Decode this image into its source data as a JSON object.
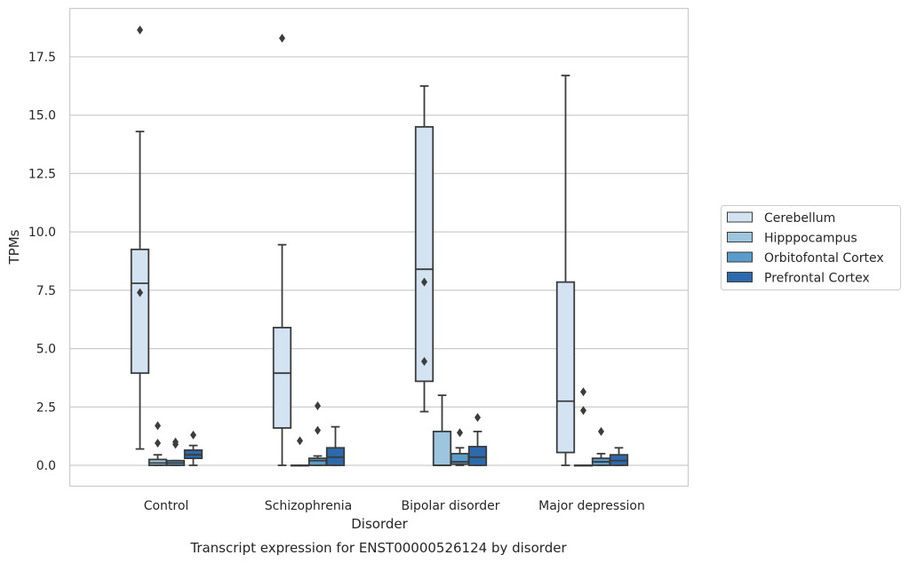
{
  "chart_data": {
    "type": "box",
    "title": "",
    "caption": "Transcript expression for ENST00000526124 by disorder",
    "xlabel": "Disorder",
    "ylabel": "TPMs",
    "ylim": [
      -0.9,
      19.6
    ],
    "yticks": [
      0.0,
      2.5,
      5.0,
      7.5,
      10.0,
      12.5,
      15.0,
      17.5
    ],
    "ytick_labels": [
      "0.0",
      "2.5",
      "5.0",
      "7.5",
      "10.0",
      "12.5",
      "15.0",
      "17.5"
    ],
    "grid": "horizontal",
    "legend_position": "right",
    "categories": [
      "Control",
      "Schizophrenia",
      "Bipolar disorder",
      "Major depression"
    ],
    "series": [
      {
        "name": "Cerebellum",
        "color": "#d3e3f2",
        "boxes": [
          {
            "whislo": 0.7,
            "q1": 3.95,
            "median": 7.8,
            "q3": 9.25,
            "whishi": 14.3,
            "fliers": [
              18.65,
              7.4
            ]
          },
          {
            "whislo": 0.0,
            "q1": 1.6,
            "median": 3.95,
            "q3": 5.9,
            "whishi": 9.45,
            "fliers": [
              18.3
            ]
          },
          {
            "whislo": 2.3,
            "q1": 3.6,
            "median": 8.4,
            "q3": 14.5,
            "whishi": 16.25,
            "fliers": [
              7.85,
              4.45
            ]
          },
          {
            "whislo": 0.0,
            "q1": 0.55,
            "median": 2.75,
            "q3": 7.85,
            "whishi": 16.7,
            "fliers": []
          }
        ]
      },
      {
        "name": "Hipppocampus",
        "color": "#9dc5de",
        "boxes": [
          {
            "whislo": 0.0,
            "q1": 0.0,
            "median": 0.1,
            "q3": 0.25,
            "whishi": 0.45,
            "fliers": [
              1.7,
              0.95
            ]
          },
          {
            "whislo": 0.0,
            "q1": 0.0,
            "median": 0.0,
            "q3": 0.0,
            "whishi": 0.0,
            "fliers": [
              1.05
            ]
          },
          {
            "whislo": 0.0,
            "q1": 0.0,
            "median": 0.0,
            "q3": 1.45,
            "whishi": 3.0,
            "fliers": []
          },
          {
            "whislo": 0.0,
            "q1": 0.0,
            "median": 0.0,
            "q3": 0.0,
            "whishi": 0.0,
            "fliers": [
              3.15,
              2.35
            ]
          }
        ]
      },
      {
        "name": "Orbitofontal Cortex",
        "color": "#5a9dcb",
        "boxes": [
          {
            "whislo": 0.0,
            "q1": 0.0,
            "median": 0.1,
            "q3": 0.2,
            "whishi": 0.2,
            "fliers": [
              1.0,
              0.9
            ]
          },
          {
            "whislo": 0.0,
            "q1": 0.0,
            "median": 0.2,
            "q3": 0.3,
            "whishi": 0.4,
            "fliers": [
              2.55,
              1.5
            ]
          },
          {
            "whislo": 0.0,
            "q1": 0.05,
            "median": 0.15,
            "q3": 0.5,
            "whishi": 0.75,
            "fliers": [
              1.4
            ]
          },
          {
            "whislo": 0.0,
            "q1": 0.0,
            "median": 0.15,
            "q3": 0.3,
            "whishi": 0.5,
            "fliers": [
              1.45
            ]
          }
        ]
      },
      {
        "name": "Prefrontal Cortex",
        "color": "#2d6aab",
        "boxes": [
          {
            "whislo": 0.0,
            "q1": 0.3,
            "median": 0.45,
            "q3": 0.65,
            "whishi": 0.85,
            "fliers": [
              1.3
            ]
          },
          {
            "whislo": 0.0,
            "q1": 0.0,
            "median": 0.35,
            "q3": 0.75,
            "whishi": 1.65,
            "fliers": []
          },
          {
            "whislo": 0.0,
            "q1": 0.0,
            "median": 0.35,
            "q3": 0.8,
            "whishi": 1.45,
            "fliers": [
              2.05
            ]
          },
          {
            "whislo": 0.0,
            "q1": 0.0,
            "median": 0.2,
            "q3": 0.45,
            "whishi": 0.75,
            "fliers": []
          }
        ]
      }
    ]
  }
}
